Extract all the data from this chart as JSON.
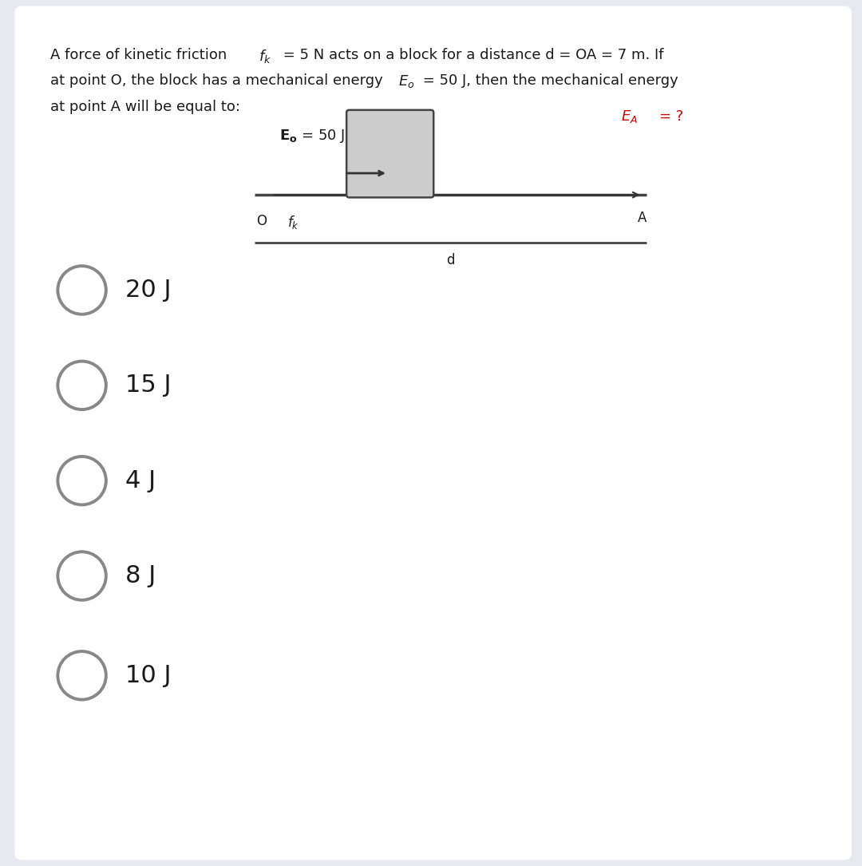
{
  "bg_color": "#e8e8f0",
  "card_color": "#ffffff",
  "text_color": "#1a1a1a",
  "red_color": "#cc0000",
  "track_color": "#444444",
  "block_fill": "#cccccc",
  "block_edge": "#444444",
  "arrow_color": "#333333",
  "circle_color": "#888888",
  "options": [
    "20 J",
    "15 J",
    "4 J",
    "8 J",
    "10 J"
  ]
}
